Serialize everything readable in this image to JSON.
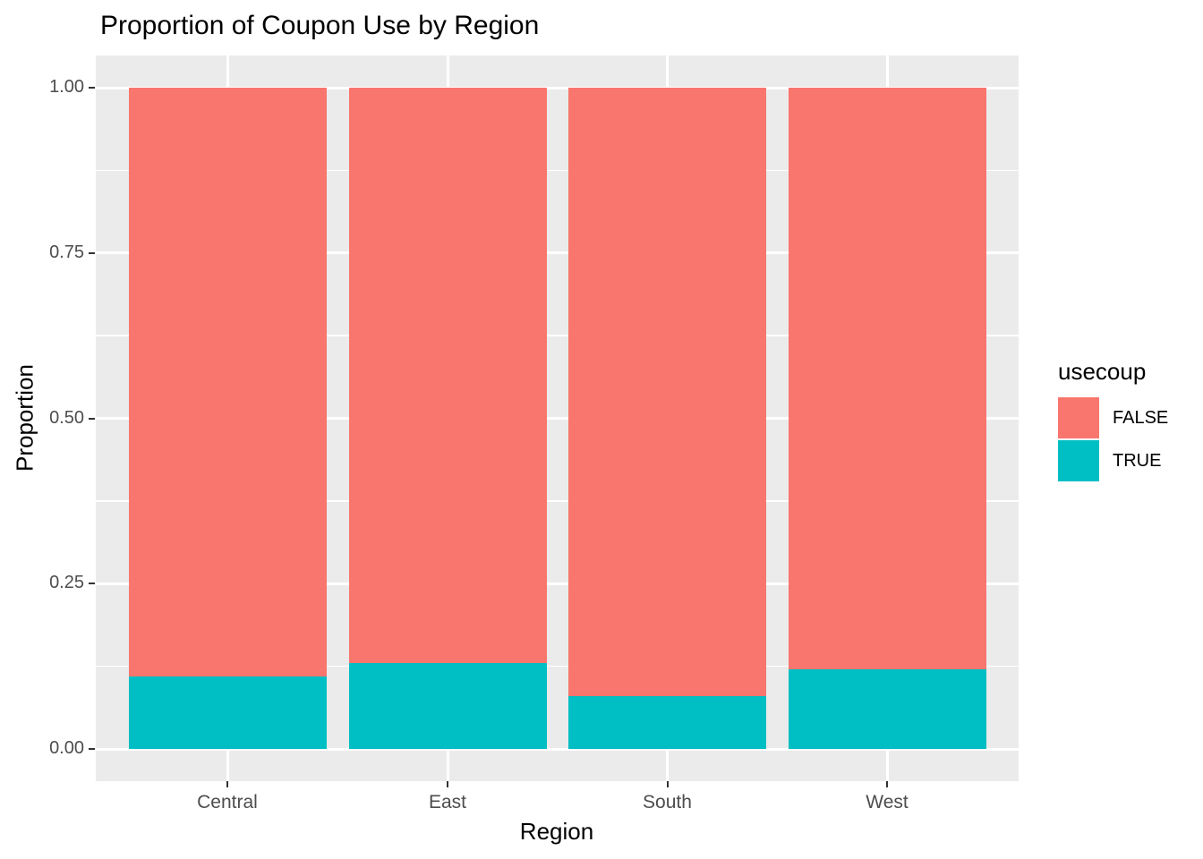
{
  "chart_data": {
    "type": "bar",
    "stacked": true,
    "normalized": true,
    "title": "Proportion of Coupon Use by Region",
    "xlabel": "Region",
    "ylabel": "Proportion",
    "categories": [
      "Central",
      "East",
      "South",
      "West"
    ],
    "series": [
      {
        "name": "FALSE",
        "color": "#F8766D",
        "values": [
          0.89,
          0.87,
          0.92,
          0.88
        ]
      },
      {
        "name": "TRUE",
        "color": "#00BFC4",
        "values": [
          0.11,
          0.13,
          0.08,
          0.12
        ]
      }
    ],
    "legend": {
      "title": "usecoup",
      "position": "right",
      "entries": [
        {
          "label": "FALSE",
          "color": "#F8766D"
        },
        {
          "label": "TRUE",
          "color": "#00BFC4"
        }
      ]
    },
    "y_ticks": [
      {
        "label": "0.00",
        "value": 0.0
      },
      {
        "label": "0.25",
        "value": 0.25
      },
      {
        "label": "0.50",
        "value": 0.5
      },
      {
        "label": "0.75",
        "value": 0.75
      },
      {
        "label": "1.00",
        "value": 1.0
      }
    ],
    "y_minor": [
      0.125,
      0.375,
      0.625,
      0.875
    ],
    "ylim": [
      0,
      1
    ],
    "grid": true,
    "colors": {
      "panel_background": "#EBEBEB",
      "grid": "#FFFFFF",
      "tick_label": "#4D4D4D",
      "tick_mark": "#333333",
      "text": "#000000",
      "background": "#FFFFFF"
    }
  }
}
